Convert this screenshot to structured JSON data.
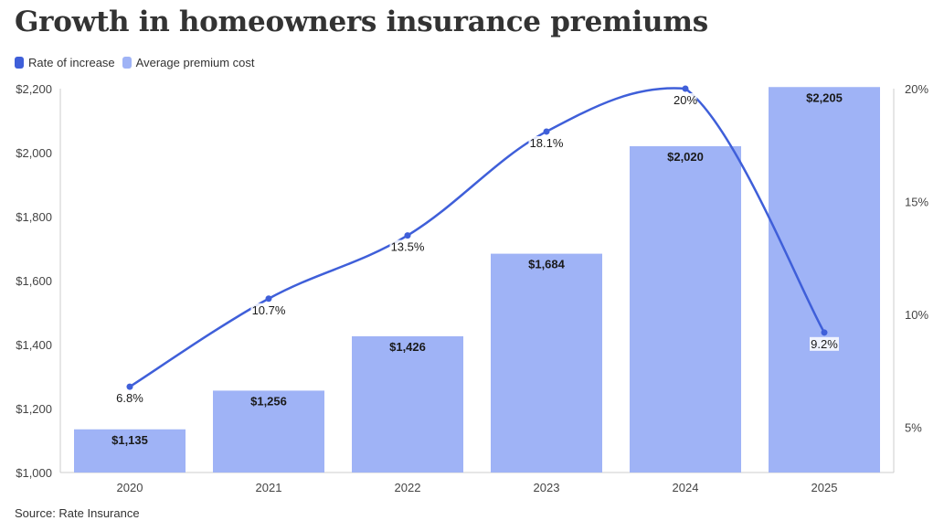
{
  "title": "Growth in homeowners insurance premiums",
  "source": "Source: Rate Insurance",
  "colors": {
    "line": "#3f5fd9",
    "bar": "#9fb3f6",
    "axis": "#cccccc",
    "text": "#333333"
  },
  "chart_data": {
    "type": "bar",
    "title": "Growth in homeowners insurance premiums",
    "legend_position": "top-left",
    "categories": [
      "2020",
      "2021",
      "2022",
      "2023",
      "2024",
      "2025"
    ],
    "series": [
      {
        "name": "Average premium cost",
        "type": "bar",
        "axis": "left",
        "values": [
          1135,
          1256,
          1426,
          1684,
          2020,
          2205
        ],
        "labels": [
          "$1,135",
          "$1,256",
          "$1,426",
          "$1,684",
          "$2,020",
          "$2,205"
        ]
      },
      {
        "name": "Rate of increase",
        "type": "line",
        "axis": "right",
        "values": [
          6.8,
          10.7,
          13.5,
          18.1,
          20,
          9.2
        ],
        "labels": [
          "6.8%",
          "10.7%",
          "13.5%",
          "18.1%",
          "20%",
          "9.2%"
        ]
      }
    ],
    "y_left": {
      "range": [
        1000,
        2200
      ],
      "ticks": [
        1000,
        1200,
        1400,
        1600,
        1800,
        2000,
        2200
      ],
      "tick_labels": [
        "$1,000",
        "$1,200",
        "$1,400",
        "$1,600",
        "$1,800",
        "$2,000",
        "$2,200"
      ]
    },
    "y_right": {
      "range": [
        3,
        20
      ],
      "ticks": [
        5,
        10,
        15,
        20
      ],
      "tick_labels": [
        "5%",
        "10%",
        "15%",
        "20%"
      ]
    },
    "grid": false
  }
}
